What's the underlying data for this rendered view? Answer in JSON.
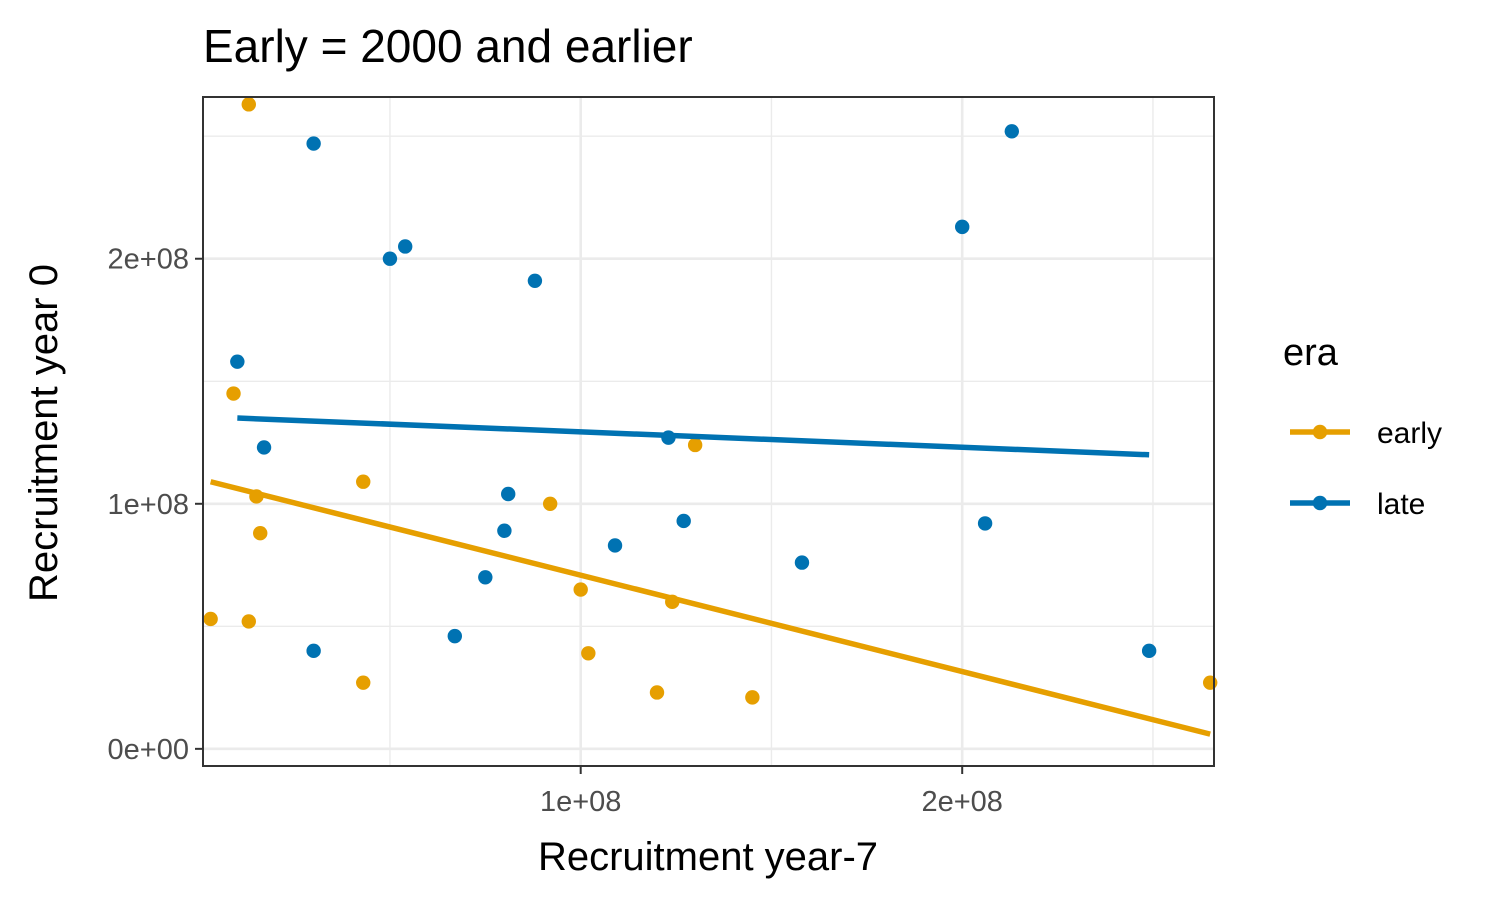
{
  "chart_data": {
    "type": "scatter",
    "title": "Early = 2000 and earlier",
    "xlabel": "Recruitment year-7",
    "ylabel": "Recruitment year 0",
    "xlim": [
      1000000,
      266000000
    ],
    "ylim": [
      -7000000,
      266000000
    ],
    "x_ticks": [
      {
        "value": 100000000,
        "label": "1e+08"
      },
      {
        "value": 200000000,
        "label": "2e+08"
      }
    ],
    "y_ticks": [
      {
        "value": 0,
        "label": "0e+00"
      },
      {
        "value": 100000000,
        "label": "1e+08"
      },
      {
        "value": 200000000,
        "label": "2e+08"
      }
    ],
    "x_minor_breaks": [
      50000000,
      150000000,
      250000000
    ],
    "y_minor_breaks": [
      50000000,
      150000000,
      250000000
    ],
    "grid": true,
    "legend": {
      "title": "era",
      "position": "right",
      "entries": [
        {
          "label": "early",
          "color": "#E69F00"
        },
        {
          "label": "late",
          "color": "#0072B2"
        }
      ]
    },
    "series": [
      {
        "name": "early",
        "color": "#E69F00",
        "points": [
          {
            "x": 13000000,
            "y": 263000000
          },
          {
            "x": 9000000,
            "y": 145000000
          },
          {
            "x": 15000000,
            "y": 103000000
          },
          {
            "x": 16000000,
            "y": 88000000
          },
          {
            "x": 3000000,
            "y": 53000000
          },
          {
            "x": 13000000,
            "y": 52000000
          },
          {
            "x": 43000000,
            "y": 109000000
          },
          {
            "x": 43000000,
            "y": 27000000
          },
          {
            "x": 92000000,
            "y": 100000000
          },
          {
            "x": 100000000,
            "y": 65000000
          },
          {
            "x": 102000000,
            "y": 39000000
          },
          {
            "x": 120000000,
            "y": 23000000
          },
          {
            "x": 124000000,
            "y": 60000000
          },
          {
            "x": 130000000,
            "y": 124000000
          },
          {
            "x": 145000000,
            "y": 21000000
          },
          {
            "x": 265000000,
            "y": 27000000
          }
        ],
        "trend": [
          {
            "x": 3000000,
            "y": 109000000
          },
          {
            "x": 265000000,
            "y": 6000000
          }
        ]
      },
      {
        "name": "late",
        "color": "#0072B2",
        "points": [
          {
            "x": 10000000,
            "y": 158000000
          },
          {
            "x": 17000000,
            "y": 123000000
          },
          {
            "x": 30000000,
            "y": 247000000
          },
          {
            "x": 30000000,
            "y": 40000000
          },
          {
            "x": 50000000,
            "y": 200000000
          },
          {
            "x": 54000000,
            "y": 205000000
          },
          {
            "x": 67000000,
            "y": 46000000
          },
          {
            "x": 75000000,
            "y": 70000000
          },
          {
            "x": 80000000,
            "y": 89000000
          },
          {
            "x": 81000000,
            "y": 104000000
          },
          {
            "x": 88000000,
            "y": 191000000
          },
          {
            "x": 109000000,
            "y": 83000000
          },
          {
            "x": 123000000,
            "y": 127000000
          },
          {
            "x": 127000000,
            "y": 93000000
          },
          {
            "x": 158000000,
            "y": 76000000
          },
          {
            "x": 200000000,
            "y": 213000000
          },
          {
            "x": 206000000,
            "y": 92000000
          },
          {
            "x": 213000000,
            "y": 252000000
          },
          {
            "x": 249000000,
            "y": 40000000
          }
        ],
        "trend": [
          {
            "x": 10000000,
            "y": 135000000
          },
          {
            "x": 249000000,
            "y": 120000000
          }
        ]
      }
    ]
  }
}
